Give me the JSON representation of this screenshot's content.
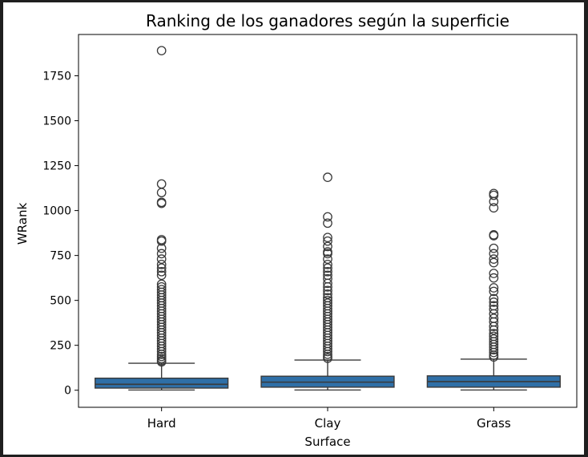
{
  "chart_data": {
    "type": "box",
    "title": "Ranking de los ganadores según la superficie",
    "xlabel": "Surface",
    "ylabel": "WRank",
    "categories": [
      "Hard",
      "Clay",
      "Grass"
    ],
    "ylim": [
      -95,
      1980
    ],
    "yticks": [
      0,
      250,
      500,
      750,
      1000,
      1250,
      1500,
      1750
    ],
    "grid": false,
    "box_color": "#2f6fa7",
    "box_edge_color": "#3a3a3a",
    "boxes": [
      {
        "name": "Hard",
        "min": 1,
        "q1": 12,
        "median": 33,
        "q3": 67,
        "whisker_high": 150,
        "outliers": [
          1890,
          1148,
          1100,
          1046,
          1040,
          838,
          830,
          790,
          760,
          730,
          700,
          680,
          660,
          640,
          590,
          575,
          560,
          545,
          530,
          515,
          500,
          485,
          470,
          455,
          440,
          425,
          410,
          395,
          380,
          365,
          350,
          335,
          320,
          305,
          290,
          275,
          260,
          245,
          230,
          215,
          200,
          188,
          176,
          165,
          158
        ]
      },
      {
        "name": "Clay",
        "min": 1,
        "q1": 17,
        "median": 45,
        "q3": 78,
        "whisker_high": 168,
        "outliers": [
          1185,
          965,
          930,
          850,
          830,
          800,
          770,
          760,
          730,
          700,
          680,
          660,
          640,
          620,
          595,
          575,
          555,
          535,
          515,
          500,
          485,
          470,
          455,
          440,
          425,
          410,
          395,
          380,
          365,
          350,
          335,
          320,
          305,
          290,
          275,
          260,
          245,
          230,
          215,
          200,
          188,
          178
        ]
      },
      {
        "name": "Grass",
        "min": 1,
        "q1": 17,
        "median": 48,
        "q3": 80,
        "whisker_high": 173,
        "outliers": [
          1095,
          1085,
          1050,
          1015,
          865,
          860,
          790,
          760,
          730,
          710,
          650,
          625,
          570,
          550,
          510,
          490,
          470,
          450,
          425,
          400,
          380,
          355,
          335,
          315,
          300,
          285,
          270,
          255,
          240,
          225,
          210,
          195,
          185
        ]
      }
    ]
  }
}
